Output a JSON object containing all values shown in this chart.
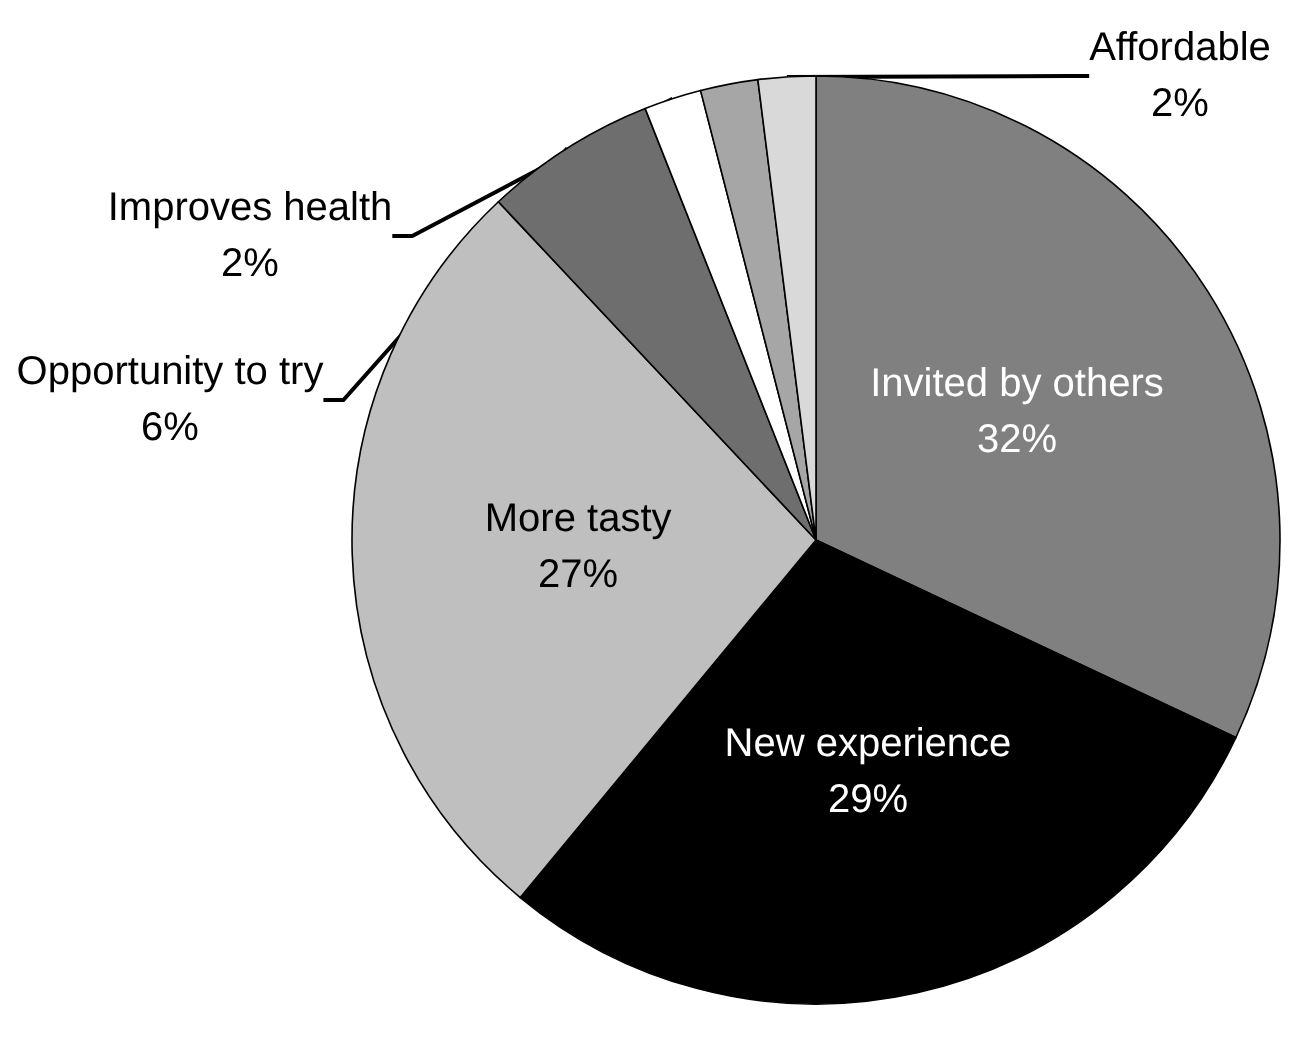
{
  "chart_data": {
    "type": "pie",
    "categories": [
      "Invited by others",
      "New experience",
      "More tasty",
      "Opportunity to try",
      "Improves health",
      null,
      "Affordable"
    ],
    "values": [
      32,
      29,
      27,
      6,
      2,
      2,
      2
    ],
    "value_labels": [
      "32%",
      "29%",
      "27%",
      "6%",
      "2%",
      null,
      "2%"
    ],
    "colors": [
      "#808080",
      "#000000",
      "#bfbfbf",
      "#6e6e6e",
      "#ffffff",
      "#a6a6a6",
      "#d9d9d9"
    ],
    "legend": false
  }
}
